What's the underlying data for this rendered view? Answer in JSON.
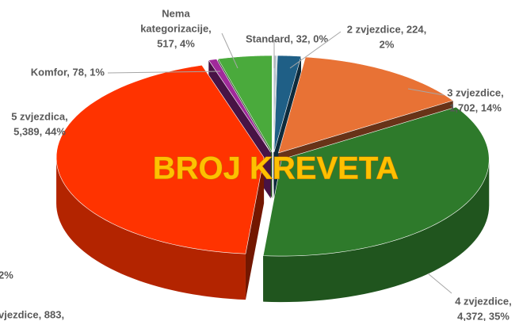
{
  "chart_data": {
    "type": "pie3d",
    "title": "BROJ KREVETA",
    "values": [
      32,
      224,
      1702,
      4372,
      5389,
      78,
      517
    ],
    "labels": [
      [
        "Standard, 32, 0%"
      ],
      [
        "2 zvjezdice, 224,",
        "2%"
      ],
      [
        "3 zvjezdice,",
        "1,702, 14%"
      ],
      [
        "4 zvjezdice,",
        "4,372, 35%"
      ],
      [
        "5 zvjezdica,",
        "5,389, 44%"
      ],
      [
        "Komfor, 78, 1%"
      ],
      [
        "Nema",
        "kategorizacije,",
        "517, 4%"
      ]
    ],
    "colors": [
      "#b8c4cc",
      "#1f5f86",
      "#e87235",
      "#2e7a2b",
      "#ff3300",
      "#a02a9a",
      "#4aaa3c"
    ],
    "cropped_labels": [
      "2%",
      "vjezdice, 883,"
    ]
  }
}
